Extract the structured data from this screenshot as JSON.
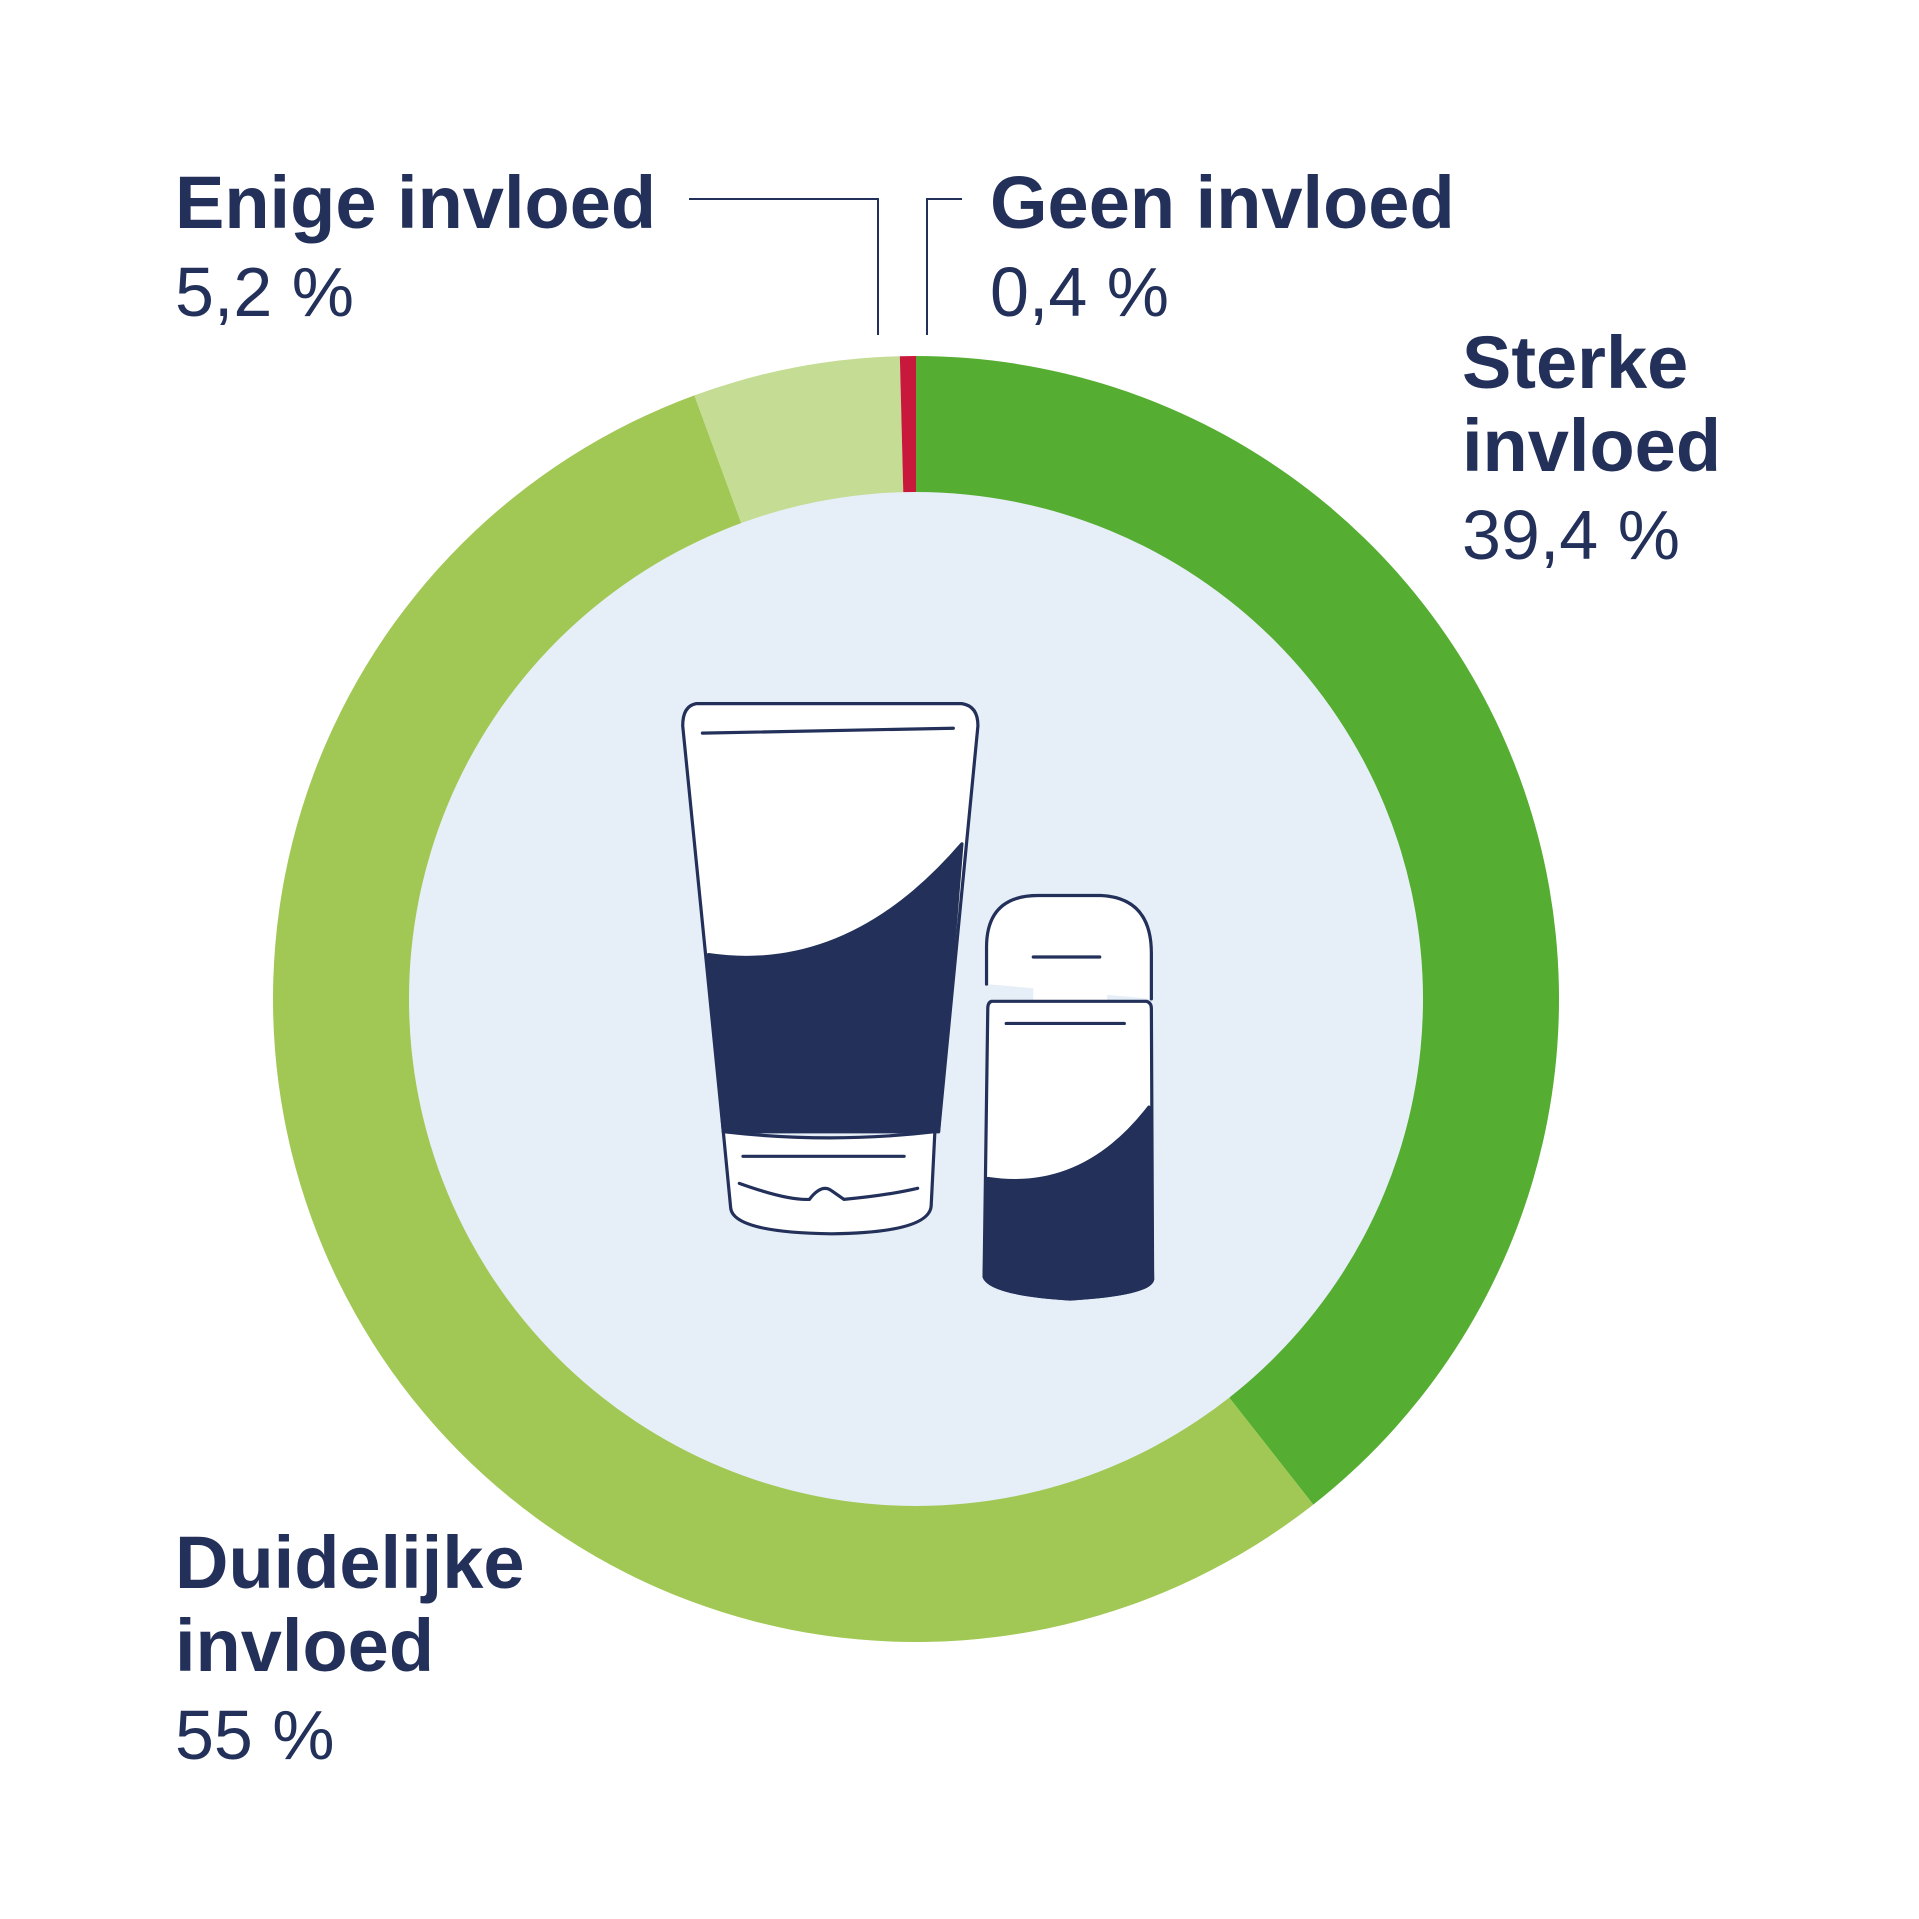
{
  "chart_data": {
    "type": "donut",
    "categories": [
      "Sterke invloed",
      "Duidelijke invloed",
      "Enige invloed",
      "Geen invloed"
    ],
    "values": [
      39.4,
      55,
      5.2,
      0.4
    ],
    "value_labels": [
      "39,4 %",
      "55 %",
      "5,2 %",
      "0,4 %"
    ],
    "colors": [
      "#55ad32",
      "#a1c854",
      "#c4dc93",
      "#c8193c"
    ]
  }
}
